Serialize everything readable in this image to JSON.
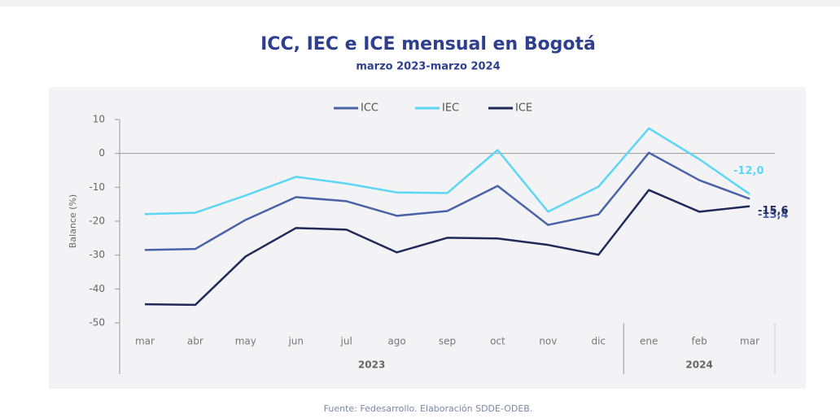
{
  "chart_data": {
    "type": "line",
    "title": "ICC, IEC e ICE mensual en Bogotá",
    "subtitle": "marzo 2023-marzo 2024",
    "y_label": "Balance (%)",
    "source": "Fuente: Fedesarrollo. Elaboración SDDE-ODEB.",
    "categories": [
      "mar",
      "abr",
      "may",
      "jun",
      "jul",
      "ago",
      "sep",
      "oct",
      "nov",
      "dic",
      "ene",
      "feb",
      "mar"
    ],
    "groups": [
      {
        "label": "2023",
        "span": 10
      },
      {
        "label": "2024",
        "span": 3
      }
    ],
    "ylim": [
      -50,
      10
    ],
    "yticks": [
      10,
      0,
      -10,
      -20,
      -30,
      -40,
      -50
    ],
    "legend": "top",
    "series": [
      {
        "name": "ICC",
        "color": "#4a63a8",
        "values": [
          -28.5,
          -28.2,
          -19.6,
          -12.9,
          -14.1,
          -18.4,
          -17.0,
          -9.6,
          -21.1,
          -18.0,
          0.2,
          -7.9,
          -13.4
        ],
        "value_labels": [
          null,
          null,
          null,
          null,
          null,
          null,
          null,
          null,
          null,
          null,
          null,
          null,
          "-13,4"
        ]
      },
      {
        "name": "IEC",
        "color": "#5dd6f5",
        "values": [
          -17.9,
          -17.5,
          -12.4,
          -6.9,
          -8.9,
          -11.5,
          -11.7,
          1.0,
          -17.2,
          -9.8,
          7.4,
          -1.7,
          -12.0
        ],
        "value_labels": [
          null,
          null,
          null,
          null,
          null,
          null,
          null,
          null,
          null,
          null,
          null,
          null,
          "-12,0"
        ]
      },
      {
        "name": "ICE",
        "color": "#1f2a5a",
        "values": [
          -44.5,
          -44.7,
          -30.4,
          -22.0,
          -22.5,
          -29.2,
          -24.9,
          -25.1,
          -27.0,
          -29.9,
          -10.8,
          -17.2,
          -15.6
        ],
        "value_labels": [
          null,
          null,
          null,
          null,
          null,
          null,
          null,
          null,
          null,
          null,
          null,
          null,
          "-15,6"
        ]
      }
    ]
  }
}
